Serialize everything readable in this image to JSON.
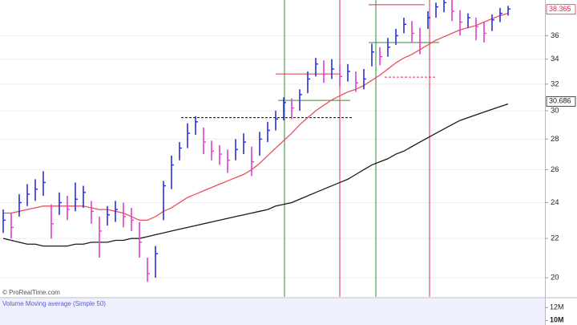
{
  "chart_data": {
    "type": "ohlc",
    "copyright": "© ProRealTime.com",
    "scale": "log",
    "grid": true,
    "xlim": [
      -0.4,
      67.6
    ],
    "ylim": [
      19.09,
      39.25
    ],
    "yticks": [
      20,
      22,
      24,
      26,
      28,
      30,
      32,
      34,
      36
    ],
    "up_color": "#2a2fd6",
    "down_color": "#e040c8",
    "high": [
      23.6,
      23.4,
      24.5,
      25.1,
      25.4,
      25.9,
      23.9,
      24.6,
      24.4,
      25.2,
      25.0,
      24.1,
      23.2,
      23.8,
      24.1,
      24.0,
      23.7,
      22.9,
      21.0,
      21.6,
      25.3,
      26.9,
      27.8,
      29.1,
      29.6,
      28.8,
      27.9,
      27.6,
      27.3,
      28.0,
      28.4,
      27.5,
      28.5,
      29.2,
      30.0,
      31.0,
      30.9,
      31.6,
      33.0,
      34.1,
      33.9,
      34.0,
      33.5,
      33.6,
      33.0,
      33.2,
      35.3,
      35.0,
      35.8,
      36.6,
      37.6,
      37.3,
      36.7,
      38.2,
      39.0,
      39.5,
      39.3,
      38.3,
      38.0,
      37.6,
      37.2,
      37.9,
      38.5,
      38.7
    ],
    "low": [
      22.3,
      22.0,
      23.2,
      23.8,
      24.1,
      24.4,
      22.0,
      23.3,
      23.0,
      23.5,
      23.7,
      22.8,
      21.0,
      22.7,
      22.9,
      22.6,
      22.4,
      21.0,
      19.8,
      20.0,
      23.0,
      24.8,
      26.6,
      27.4,
      28.3,
      27.0,
      26.6,
      26.3,
      25.8,
      26.6,
      27.0,
      25.6,
      26.9,
      27.8,
      28.6,
      29.3,
      29.4,
      30.0,
      31.3,
      32.6,
      32.1,
      32.4,
      31.8,
      32.2,
      31.4,
      31.6,
      33.4,
      33.5,
      34.2,
      35.2,
      36.2,
      35.4,
      34.4,
      36.6,
      37.6,
      38.1,
      37.3,
      36.0,
      36.7,
      35.6,
      35.4,
      36.4,
      37.2,
      37.8
    ],
    "close": [
      23.0,
      22.6,
      24.0,
      24.5,
      24.8,
      25.2,
      22.8,
      24.0,
      23.6,
      24.2,
      24.6,
      23.5,
      22.4,
      23.3,
      23.6,
      23.2,
      23.0,
      21.8,
      20.2,
      21.2,
      25.0,
      26.3,
      27.4,
      28.4,
      29.2,
      27.8,
      27.2,
      27.0,
      26.6,
      27.3,
      27.8,
      26.5,
      28.0,
      28.6,
      29.4,
      30.6,
      30.2,
      31.2,
      32.4,
      33.6,
      32.8,
      33.2,
      32.6,
      33.0,
      32.1,
      32.4,
      34.6,
      34.2,
      35.0,
      36.0,
      37.0,
      36.2,
      35.4,
      37.6,
      38.6,
      39.0,
      38.2,
      37.2,
      37.6,
      36.8,
      36.2,
      37.4,
      38.0,
      38.4
    ],
    "series": [
      {
        "color": "#e8505a",
        "values": [
          23.4,
          23.4,
          23.5,
          23.6,
          23.7,
          23.8,
          23.8,
          23.8,
          23.8,
          23.8,
          23.8,
          23.7,
          23.6,
          23.6,
          23.5,
          23.4,
          23.2,
          23.0,
          23.0,
          23.2,
          23.5,
          23.7,
          24.0,
          24.3,
          24.5,
          24.7,
          24.9,
          25.1,
          25.3,
          25.5,
          25.7,
          26.0,
          26.4,
          26.9,
          27.4,
          27.9,
          28.4,
          29.0,
          29.5,
          30.0,
          30.4,
          30.8,
          31.1,
          31.4,
          31.6,
          31.9,
          32.3,
          32.7,
          33.2,
          33.7,
          34.1,
          34.4,
          34.8,
          35.2,
          35.6,
          35.9,
          36.2,
          36.5,
          36.7,
          36.9,
          37.2,
          37.5,
          37.8,
          38.0
        ]
      },
      {
        "color": "#1a1a1a",
        "values": [
          22.0,
          21.9,
          21.8,
          21.7,
          21.7,
          21.6,
          21.6,
          21.6,
          21.6,
          21.7,
          21.7,
          21.8,
          21.8,
          21.8,
          21.9,
          21.9,
          22.0,
          22.0,
          22.1,
          22.2,
          22.3,
          22.4,
          22.5,
          22.6,
          22.7,
          22.8,
          22.9,
          23.0,
          23.1,
          23.2,
          23.3,
          23.4,
          23.5,
          23.6,
          23.8,
          23.9,
          24.0,
          24.2,
          24.4,
          24.6,
          24.8,
          25.0,
          25.2,
          25.4,
          25.7,
          26.0,
          26.3,
          26.5,
          26.7,
          27.0,
          27.2,
          27.5,
          27.8,
          28.1,
          28.4,
          28.7,
          29.0,
          29.3,
          29.5,
          29.7,
          29.9,
          30.1,
          30.3,
          30.5
        ]
      }
    ],
    "vlines": [
      {
        "x": 35.1,
        "color": "#2e8b3a"
      },
      {
        "x": 42.0,
        "color": "#e0304a"
      },
      {
        "x": 46.5,
        "color": "#2e8b3a"
      },
      {
        "x": 53.2,
        "color": "#e0304a"
      }
    ],
    "hlines": [
      {
        "y": 29.5,
        "x": [
          22.2,
          43.6
        ],
        "color": "#000000",
        "dashed": true
      },
      {
        "y": 32.8,
        "x": [
          34.0,
          42.1
        ],
        "color": "#e0304a",
        "dashed": false
      },
      {
        "y": 30.76,
        "x": [
          34.3,
          43.3
        ],
        "color": "#2e8b3a",
        "dashed": false
      },
      {
        "y": 38.8,
        "x": [
          45.6,
          52.6
        ],
        "color": "#e0304a",
        "dashed": false
      },
      {
        "y": 35.4,
        "x": [
          45.6,
          54.4
        ],
        "color": "#2e8b3a",
        "dashed": false
      },
      {
        "y": 32.55,
        "x": [
          47.6,
          54.1
        ],
        "color": "#e0304a",
        "dashed": true
      }
    ],
    "price_tags": [
      {
        "value": 38.365,
        "color": "#e0304a"
      },
      {
        "value": 30.686,
        "color": "#1a1a1a"
      }
    ],
    "volume_panel": {
      "title": "Volume Moving average (Simple 50)",
      "ylim": [
        9300000,
        13400000
      ],
      "yticks": [
        {
          "value": 12000000,
          "label": "12M"
        },
        {
          "value": 10000000,
          "label": "10M"
        }
      ]
    }
  }
}
